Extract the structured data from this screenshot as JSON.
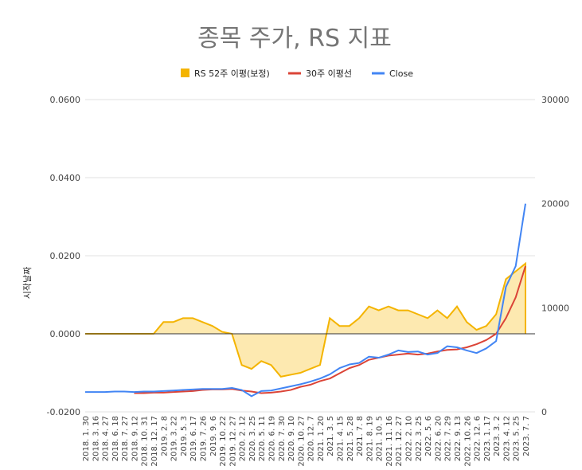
{
  "chart_data": {
    "type": "area",
    "title": "종목 주가, RS 지표",
    "ylabel": "시작날짜",
    "y2label": "",
    "legend_position": "top",
    "grid": true,
    "ylim": [
      -0.02,
      0.06
    ],
    "y2lim": [
      0,
      30000
    ],
    "yticks": [
      "-0.0200",
      "0.0000",
      "0.0200",
      "0.0400",
      "0.0600"
    ],
    "y2ticks": [
      "0",
      "10000",
      "20000",
      "30000"
    ],
    "colors": {
      "rs": "#f4b400",
      "rs_fill": "#fde9b0",
      "ma30": "#db4437",
      "close": "#4285f4",
      "zero_line": "#333333"
    },
    "x_dates": [
      "2018-01-30",
      "2018-03-16",
      "2018-04-27",
      "2018-06-18",
      "2018-07-27",
      "2018-09-12",
      "2018-10-31",
      "2018-12-17",
      "2019-02-08",
      "2019-03-22",
      "2019-05-03",
      "2019-06-17",
      "2019-07-26",
      "2019-09-06",
      "2019-10-22",
      "2019-12-27",
      "2020-02-12",
      "2020-03-25",
      "2020-05-11",
      "2020-06-19",
      "2020-07-30",
      "2020-09-10",
      "2020-10-27",
      "2020-12-07",
      "2021-01-20",
      "2021-03-05",
      "2021-04-15",
      "2021-05-28",
      "2021-07-08",
      "2021-08-19",
      "2021-10-05",
      "2021-11-16",
      "2021-12-27",
      "2022-02-10",
      "2022-03-25",
      "2022-05-06",
      "2022-06-20",
      "2022-07-29",
      "2022-09-13",
      "2022-10-26",
      "2022-12-06",
      "2023-01-17",
      "2023-03-02",
      "2023-04-12",
      "2023-05-25",
      "2023-07-07"
    ],
    "x_tick_labels": [
      "2018. 1. 30",
      "2018. 3. 16",
      "2018. 4. 27",
      "2018. 6. 18",
      "2018. 7. 27",
      "2018. 9. 12",
      "2018. 10. 31",
      "2018. 12. 17",
      "2019. 2. 8",
      "2019. 3. 22",
      "2019. 5. 3",
      "2019. 6. 17",
      "2019. 7. 26",
      "2019. 9. 6",
      "2019. 10. 22",
      "2019. 12. 27",
      "2020. 2. 12",
      "2020. 3. 25",
      "2020. 5. 11",
      "2020. 6. 19",
      "2020. 7. 30",
      "2020. 9. 10",
      "2020. 10. 27",
      "2020. 12. 7",
      "2021. 1. 20",
      "2021. 3. 5",
      "2021. 4. 15",
      "2021. 5. 28",
      "2021. 7. 8",
      "2021. 8. 19",
      "2021. 10. 5",
      "2021. 11. 16",
      "2021. 12. 27",
      "2022. 2. 10",
      "2022. 3. 25",
      "2022. 5. 6",
      "2022. 6. 20",
      "2022. 7. 29",
      "2022. 9. 13",
      "2022. 10. 26",
      "2022. 12. 6",
      "2023. 1. 17",
      "2023. 3. 2",
      "2023. 4. 12",
      "2023. 5. 25",
      "2023. 7. 7"
    ],
    "series": [
      {
        "name": "RS 52주 이평(보정)",
        "axis": "left",
        "kind": "area",
        "values": [
          0,
          0,
          0,
          0,
          0,
          0,
          0,
          0,
          0.003,
          0.003,
          0.004,
          0.004,
          0.003,
          0.002,
          0.0005,
          0,
          -0.008,
          -0.009,
          -0.007,
          -0.008,
          -0.011,
          -0.0105,
          -0.01,
          -0.009,
          -0.008,
          0.004,
          0.002,
          0.002,
          0.004,
          0.007,
          0.006,
          0.007,
          0.006,
          0.006,
          0.005,
          0.004,
          0.006,
          0.004,
          0.007,
          0.003,
          0.001,
          0.002,
          0.005,
          0.014,
          0.016,
          0.018
        ]
      },
      {
        "name": "30주 이평선",
        "axis": "right",
        "kind": "line",
        "values": [
          null,
          null,
          null,
          null,
          null,
          1800,
          1800,
          1850,
          1850,
          1900,
          1950,
          2000,
          2100,
          2150,
          2150,
          2200,
          2050,
          1950,
          1800,
          1850,
          1950,
          2100,
          2400,
          2600,
          2950,
          3200,
          3700,
          4200,
          4500,
          5000,
          5200,
          5400,
          5500,
          5600,
          5500,
          5600,
          5800,
          5950,
          6000,
          6200,
          6500,
          6900,
          7500,
          9000,
          11000,
          14000
        ]
      },
      {
        "name": "Close",
        "axis": "right",
        "kind": "line",
        "values": [
          1900,
          1900,
          1900,
          1950,
          1950,
          1900,
          1950,
          1950,
          2000,
          2050,
          2100,
          2150,
          2200,
          2200,
          2200,
          2300,
          2100,
          1500,
          2000,
          2050,
          2250,
          2450,
          2650,
          2900,
          3200,
          3600,
          4200,
          4550,
          4700,
          5300,
          5200,
          5500,
          5900,
          5750,
          5800,
          5500,
          5650,
          6300,
          6200,
          5900,
          5650,
          6100,
          6800,
          12000,
          14000,
          20000
        ]
      }
    ]
  }
}
